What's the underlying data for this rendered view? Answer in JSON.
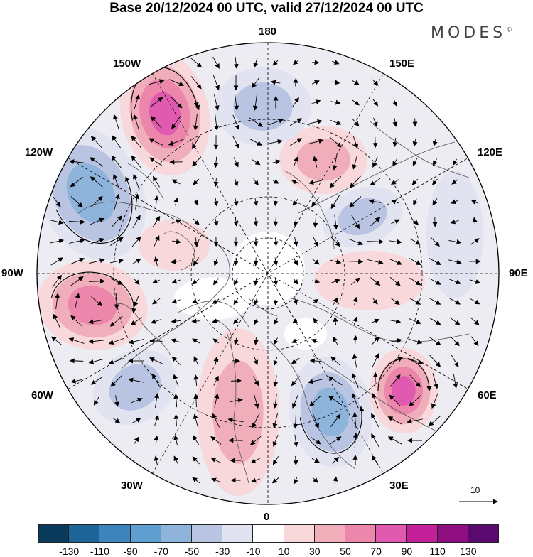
{
  "title": "Base 20/12/2024 00 UTC, valid 27/12/2024 00 UTC",
  "brand": "MODES",
  "brand_mark": "©",
  "longitude_labels": {
    "n180": "180",
    "n150w": "150W",
    "n150e": "150E",
    "n120w": "120W",
    "n120e": "120E",
    "n90w": "90W",
    "n90e": "90E",
    "n60w": "60W",
    "n60e": "60E",
    "n30w": "30W",
    "n30e": "30E",
    "n0": "0"
  },
  "reference_vector_label": "10",
  "colorbar": {
    "colors": [
      "#0a3a5c",
      "#1e6496",
      "#3d84bd",
      "#5f9fd0",
      "#8fb4dc",
      "#b9c4e2",
      "#e2e3f0",
      "#ffffff",
      "#f8d8da",
      "#f0aebb",
      "#ec87ab",
      "#e05ab0",
      "#c4209a",
      "#8f0f82",
      "#5a0a6e"
    ],
    "ticks": [
      "-130",
      "-110",
      "-90",
      "-70",
      "-50",
      "-30",
      "-10",
      "10",
      "30",
      "50",
      "70",
      "90",
      "110",
      "130"
    ]
  },
  "anomaly_features": [
    {
      "id": "pos-150w",
      "level": 4
    },
    {
      "id": "neg-120w",
      "level": -3
    },
    {
      "id": "pos-90w",
      "level": 3
    },
    {
      "id": "neg-60w",
      "level": -2
    },
    {
      "id": "pos-0",
      "level": 2
    },
    {
      "id": "neg-30e",
      "level": -3
    },
    {
      "id": "pos-60e",
      "level": 4
    },
    {
      "id": "pos-90e",
      "level": 1
    },
    {
      "id": "neg-120e",
      "level": -2
    },
    {
      "id": "pos-150e",
      "level": 2
    },
    {
      "id": "neg-180",
      "level": -2
    },
    {
      "id": "pos-100w",
      "level": 1
    },
    {
      "id": "neg-sib",
      "level": -1
    }
  ]
}
